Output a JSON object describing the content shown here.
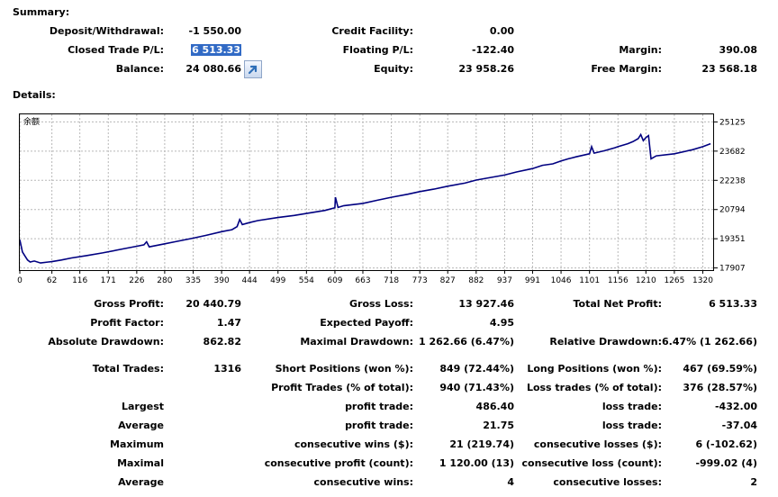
{
  "summary": {
    "title": "Summary:",
    "deposit_label": "Deposit/Withdrawal:",
    "deposit_value": "-1 550.00",
    "credit_label": "Credit Facility:",
    "credit_value": "0.00",
    "closed_label": "Closed Trade P/L:",
    "closed_value": "6 513.33",
    "floating_label": "Floating P/L:",
    "floating_value": "-122.40",
    "margin_label": "Margin:",
    "margin_value": "390.08",
    "balance_label": "Balance:",
    "balance_value": "24 080.66",
    "equity_label": "Equity:",
    "equity_value": "23 958.26",
    "free_margin_label": "Free Margin:",
    "free_margin_value": "23 568.18"
  },
  "details": {
    "title": "Details:"
  },
  "chart_data": {
    "type": "line",
    "legend_text": "余额",
    "y_ticks": [
      "25125",
      "23682",
      "22238",
      "20794",
      "19351",
      "17907"
    ],
    "y_tick_values": [
      25125,
      23682,
      22238,
      20794,
      19351,
      17907
    ],
    "x_ticks": [
      "0",
      "62",
      "116",
      "171",
      "226",
      "280",
      "335",
      "390",
      "444",
      "499",
      "554",
      "609",
      "663",
      "718",
      "773",
      "827",
      "882",
      "937",
      "991",
      "1046",
      "1101",
      "1156",
      "1210",
      "1265",
      "1320"
    ],
    "xlim": [
      0,
      1340
    ],
    "ylim": [
      17800,
      25500
    ],
    "grid": true,
    "series": [
      {
        "color": "#000080",
        "x": [
          0,
          5,
          10,
          15,
          20,
          28,
          40,
          55,
          62,
          80,
          100,
          130,
          160,
          200,
          226,
          240,
          245,
          250,
          280,
          300,
          335,
          360,
          390,
          410,
          420,
          425,
          430,
          444,
          460,
          499,
          530,
          554,
          590,
          609,
          610,
          615,
          625,
          663,
          690,
          718,
          750,
          773,
          800,
          827,
          860,
          882,
          910,
          937,
          960,
          991,
          1010,
          1030,
          1046,
          1060,
          1075,
          1101,
          1105,
          1110,
          1130,
          1150,
          1156,
          1175,
          1185,
          1195,
          1200,
          1205,
          1210,
          1215,
          1220,
          1230,
          1265,
          1300,
          1320,
          1335
        ],
        "y": [
          19300,
          18700,
          18500,
          18300,
          18200,
          18250,
          18150,
          18200,
          18220,
          18300,
          18400,
          18520,
          18650,
          18850,
          18980,
          19050,
          19200,
          18950,
          19100,
          19200,
          19380,
          19520,
          19700,
          19800,
          19950,
          20300,
          20050,
          20150,
          20250,
          20400,
          20500,
          20600,
          20750,
          20880,
          21400,
          20900,
          20980,
          21100,
          21250,
          21400,
          21550,
          21680,
          21800,
          21950,
          22100,
          22250,
          22380,
          22500,
          22650,
          22820,
          22980,
          23050,
          23200,
          23300,
          23400,
          23550,
          23900,
          23580,
          23700,
          23850,
          23900,
          24050,
          24150,
          24300,
          24500,
          24200,
          24350,
          24450,
          23300,
          23450,
          23550,
          23750,
          23900,
          24050
        ]
      }
    ]
  },
  "stats": {
    "rows": [
      [
        {
          "label": "Gross Profit:",
          "value": "20 440.79"
        },
        {
          "label": "Gross Loss:",
          "value": "13 927.46"
        },
        {
          "label": "Total Net Profit:",
          "value": "6 513.33"
        }
      ],
      [
        {
          "label": "Profit Factor:",
          "value": "1.47"
        },
        {
          "label": "Expected Payoff:",
          "value": "4.95"
        },
        {
          "label": "",
          "value": ""
        }
      ],
      [
        {
          "label": "Absolute Drawdown:",
          "value": "862.82"
        },
        {
          "label": "Maximal Drawdown:",
          "value": "1 262.66 (6.47%)"
        },
        {
          "label": "Relative Drawdown:",
          "value": "6.47% (1 262.66)"
        }
      ],
      [
        {
          "label": "Total Trades:",
          "value": "1316"
        },
        {
          "label": "Short Positions (won %):",
          "value": "849 (72.44%)"
        },
        {
          "label": "Long Positions (won %):",
          "value": "467 (69.59%)"
        }
      ],
      [
        {
          "label": "",
          "value": ""
        },
        {
          "label": "Profit Trades (% of total):",
          "value": "940 (71.43%)"
        },
        {
          "label": "Loss trades (% of total):",
          "value": "376 (28.57%)"
        }
      ],
      [
        {
          "label": "Largest",
          "value": ""
        },
        {
          "label": "profit trade:",
          "value": "486.40"
        },
        {
          "label": "loss trade:",
          "value": "-432.00"
        }
      ],
      [
        {
          "label": "Average",
          "value": ""
        },
        {
          "label": "profit trade:",
          "value": "21.75"
        },
        {
          "label": "loss trade:",
          "value": "-37.04"
        }
      ],
      [
        {
          "label": "Maximum",
          "value": ""
        },
        {
          "label": "consecutive wins ($):",
          "value": "21 (219.74)"
        },
        {
          "label": "consecutive losses ($):",
          "value": "6 (-102.62)"
        }
      ],
      [
        {
          "label": "Maximal",
          "value": ""
        },
        {
          "label": "consecutive profit (count):",
          "value": "1 120.00 (13)"
        },
        {
          "label": "consecutive loss (count):",
          "value": "-999.02 (4)"
        }
      ],
      [
        {
          "label": "Average",
          "value": ""
        },
        {
          "label": "consecutive wins:",
          "value": "4"
        },
        {
          "label": "consecutive losses:",
          "value": "2"
        }
      ]
    ]
  }
}
